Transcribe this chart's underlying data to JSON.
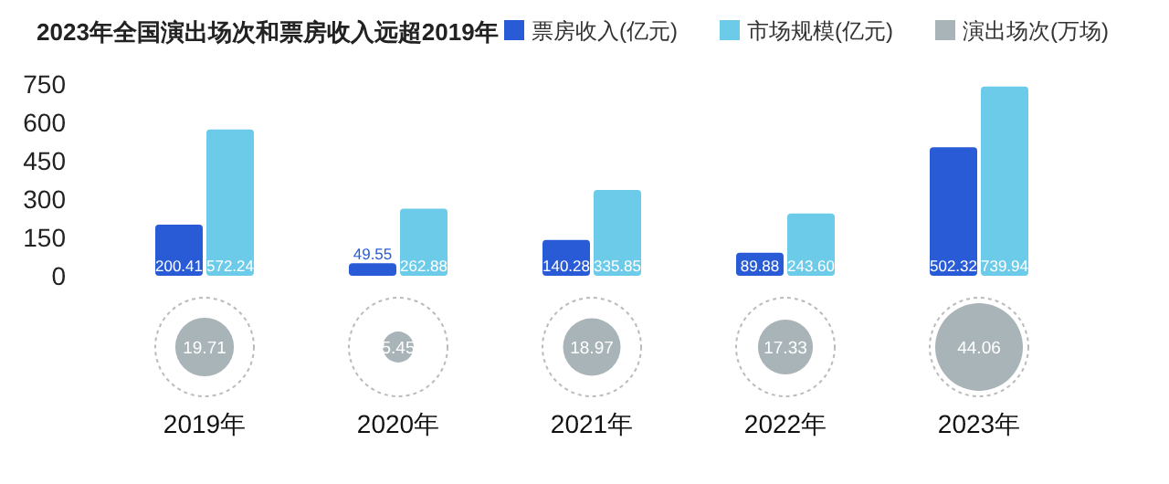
{
  "chart_data": [
    {
      "type": "bar",
      "title": "2023年全国演出场次和票房收入远超2019年",
      "categories": [
        "2019年",
        "2020年",
        "2021年",
        "2022年",
        "2023年"
      ],
      "series": [
        {
          "name": "票房收入(亿元)",
          "color": "#2a5bd7",
          "values": [
            200.41,
            49.55,
            140.28,
            89.88,
            502.32
          ],
          "value_labels": [
            "200.41",
            "49.55",
            "140.28",
            "89.88",
            "502.32"
          ]
        },
        {
          "name": "市场规模(亿元)",
          "color": "#6dcbea",
          "values": [
            572.24,
            262.88,
            335.85,
            243.6,
            739.94
          ],
          "value_labels": [
            "572.24",
            "262.88",
            "335.85",
            "243.60",
            "739.94"
          ]
        }
      ],
      "ylim": [
        0,
        750
      ],
      "yticks": [
        0,
        150,
        300,
        450,
        600,
        750
      ],
      "legend": "top right"
    },
    {
      "type": "other",
      "categories": [
        null,
        null,
        null,
        null,
        null
      ],
      "series": [
        {
          "name": "演出场次(万场)",
          "color": "#a9b4b8",
          "values": [
            19.71,
            5.45,
            18.97,
            17.33,
            44.06
          ]
        }
      ],
      "data_labels": true,
      "legend": "top right"
    }
  ]
}
